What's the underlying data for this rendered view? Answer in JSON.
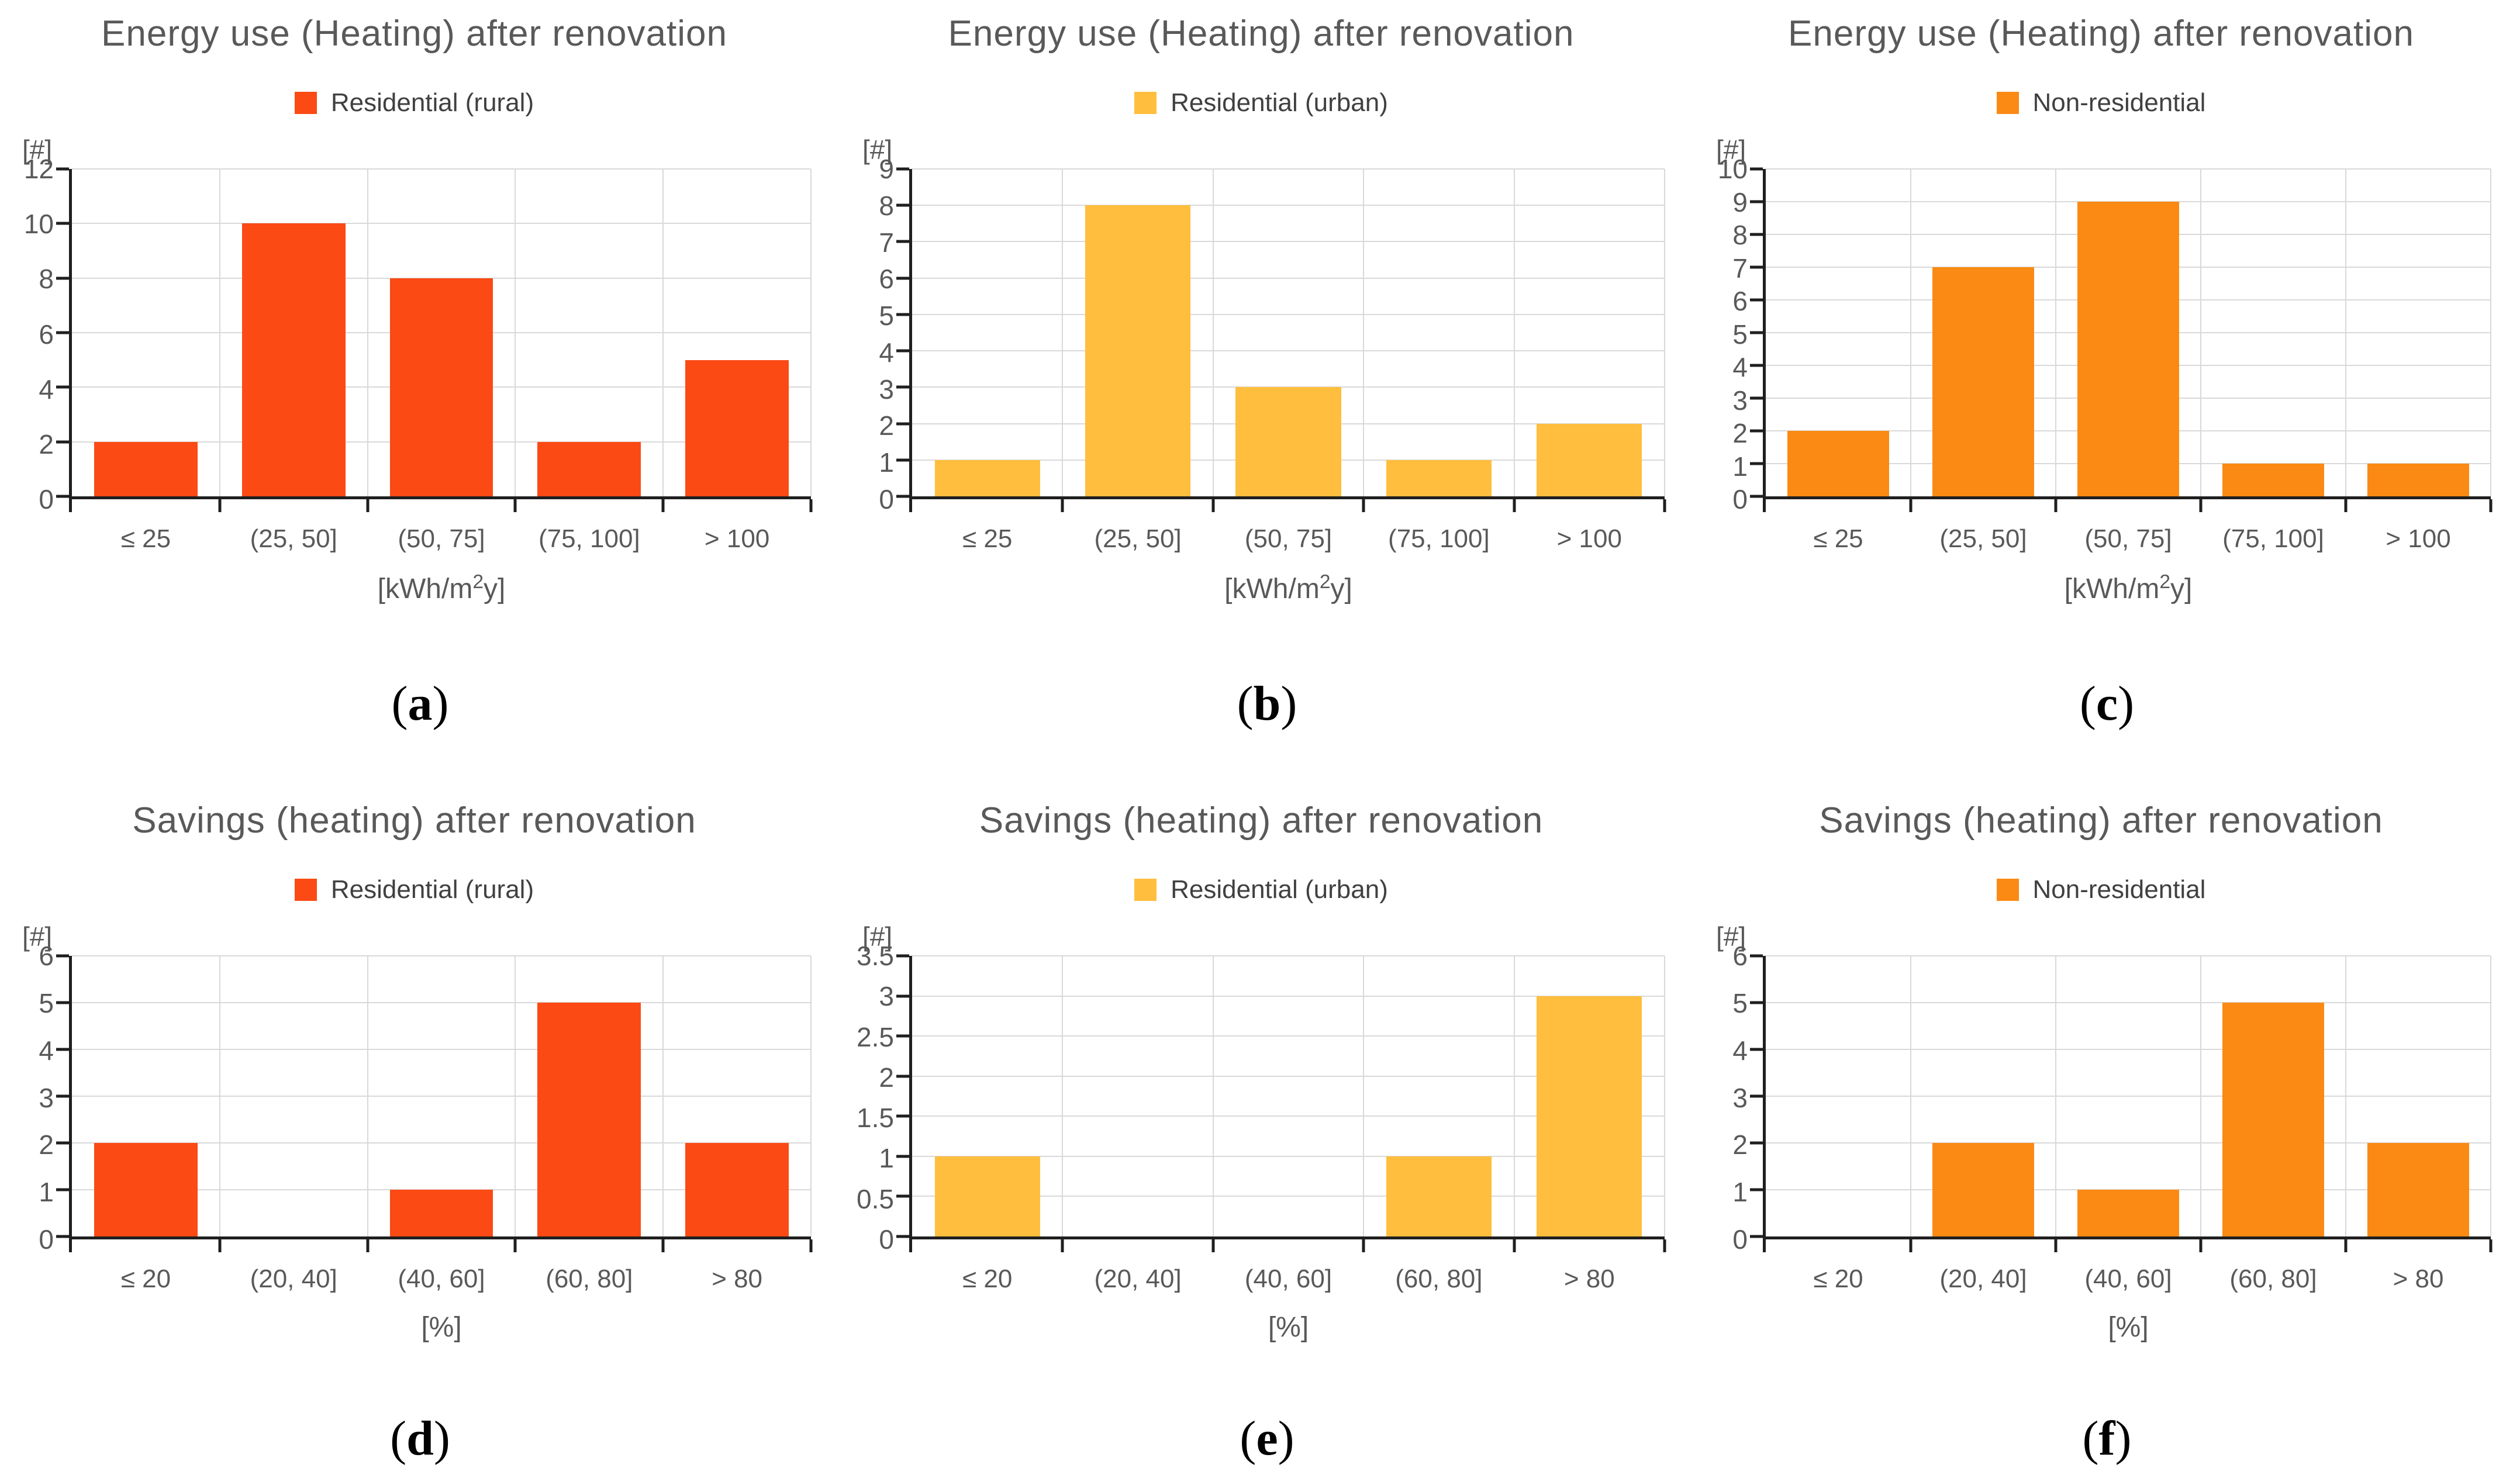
{
  "chart_data": [
    {
      "type": "bar",
      "panel_label": "a",
      "title": "Energy use (Heating) after renovation",
      "legend": "Residential (rural)",
      "color": "#FB4A14",
      "categories": [
        "≤ 25",
        "(25, 50]",
        "(50, 75]",
        "(75, 100]",
        "> 100"
      ],
      "values": [
        2,
        10,
        8,
        2,
        5
      ],
      "xlabel": "[kWh/m²y]",
      "ylabel": "[#]",
      "ylim": [
        0,
        12
      ],
      "ytick_step": 2,
      "grid": true,
      "legend_position": "top"
    },
    {
      "type": "bar",
      "panel_label": "b",
      "title": "Energy use (Heating) after renovation",
      "legend": "Residential (urban)",
      "color": "#FFBE3D",
      "categories": [
        "≤ 25",
        "(25, 50]",
        "(50, 75]",
        "(75, 100]",
        "> 100"
      ],
      "values": [
        1,
        8,
        3,
        1,
        2
      ],
      "xlabel": "[kWh/m²y]",
      "ylabel": "[#]",
      "ylim": [
        0,
        9
      ],
      "ytick_step": 1,
      "grid": true,
      "legend_position": "top"
    },
    {
      "type": "bar",
      "panel_label": "c",
      "title": "Energy use (Heating) after renovation",
      "legend": "Non-residential",
      "color": "#FA8A14",
      "categories": [
        "≤ 25",
        "(25, 50]",
        "(50, 75]",
        "(75, 100]",
        "> 100"
      ],
      "values": [
        2,
        7,
        9,
        1,
        1
      ],
      "xlabel": "[kWh/m²y]",
      "ylabel": "[#]",
      "ylim": [
        0,
        10
      ],
      "ytick_step": 1,
      "grid": true,
      "legend_position": "top"
    },
    {
      "type": "bar",
      "panel_label": "d",
      "title": "Savings (heating) after renovation",
      "legend": "Residential (rural)",
      "color": "#FB4A14",
      "categories": [
        "≤ 20",
        "(20, 40]",
        "(40, 60]",
        "(60, 80]",
        "> 80"
      ],
      "values": [
        2,
        0,
        1,
        5,
        2
      ],
      "xlabel": "[%]",
      "ylabel": "[#]",
      "ylim": [
        0,
        6
      ],
      "ytick_step": 1,
      "grid": true,
      "legend_position": "top"
    },
    {
      "type": "bar",
      "panel_label": "e",
      "title": "Savings (heating) after renovation",
      "legend": "Residential (urban)",
      "color": "#FFBE3D",
      "categories": [
        "≤ 20",
        "(20, 40]",
        "(40, 60]",
        "(60, 80]",
        "> 80"
      ],
      "values": [
        1,
        0,
        0,
        1,
        3
      ],
      "xlabel": "[%]",
      "ylabel": "[#]",
      "ylim": [
        0,
        3.5
      ],
      "ytick_step": 0.5,
      "grid": true,
      "legend_position": "top"
    },
    {
      "type": "bar",
      "panel_label": "f",
      "title": "Savings (heating) after renovation",
      "legend": "Non-residential",
      "color": "#FA8A14",
      "categories": [
        "≤ 20",
        "(20, 40]",
        "(40, 60]",
        "(60, 80]",
        "> 80"
      ],
      "values": [
        0,
        2,
        1,
        5,
        2
      ],
      "xlabel": "[%]",
      "ylabel": "[#]",
      "ylim": [
        0,
        6
      ],
      "ytick_step": 1,
      "grid": true,
      "legend_position": "top"
    }
  ]
}
